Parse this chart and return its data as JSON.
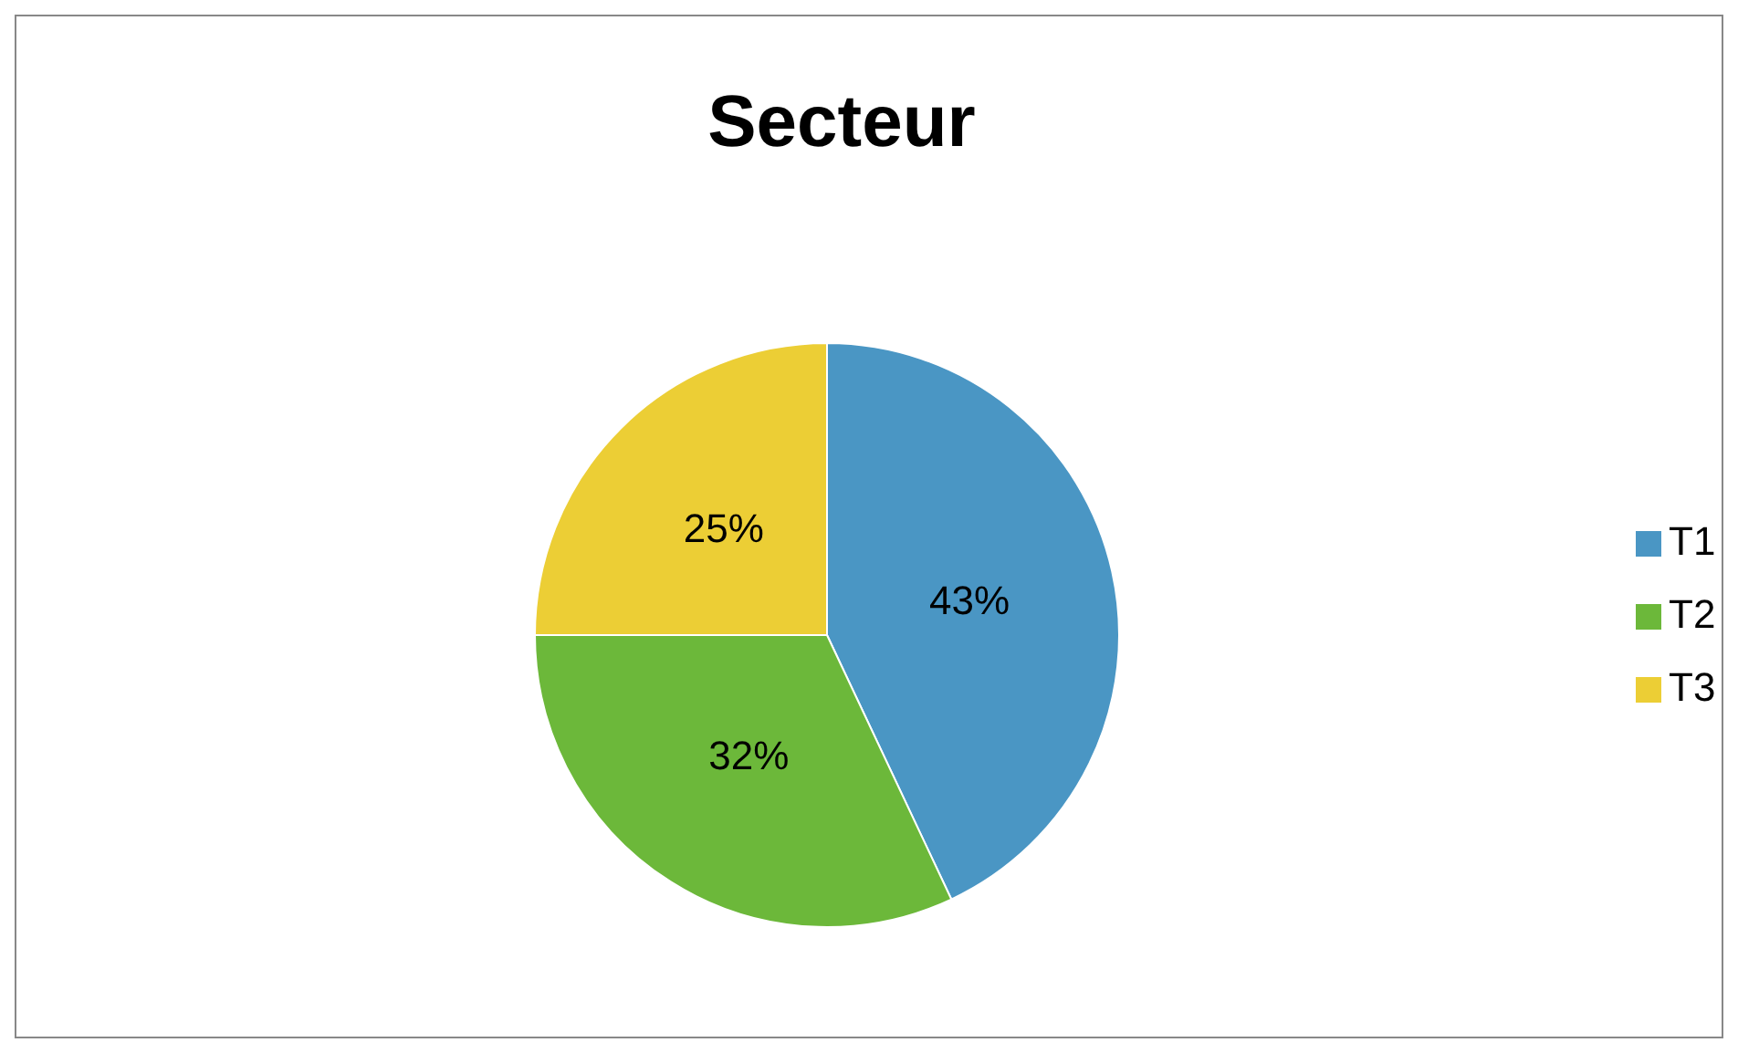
{
  "chart_data": {
    "type": "pie",
    "title": "Secteur",
    "categories": [
      "T1",
      "T2",
      "T3"
    ],
    "values": [
      43,
      32,
      25
    ],
    "colors": [
      "#4a96c4",
      "#6cb83a",
      "#ecce35"
    ],
    "value_labels": [
      "43%",
      "32%",
      "25%"
    ],
    "legend": "right"
  }
}
